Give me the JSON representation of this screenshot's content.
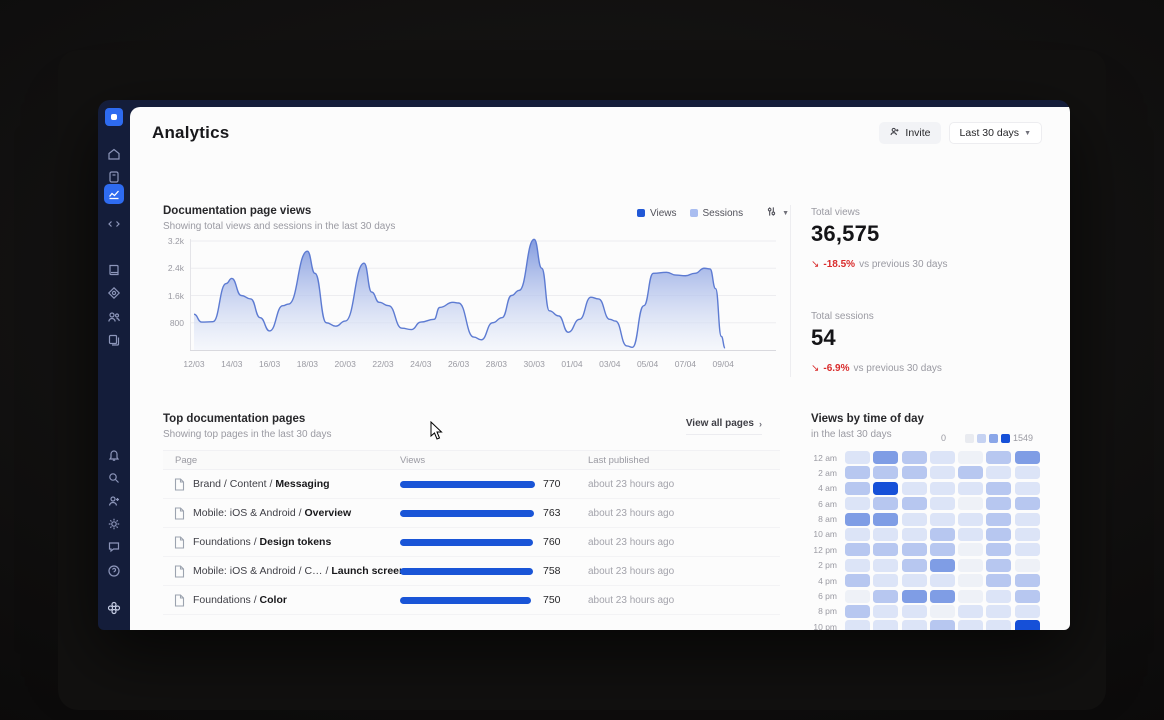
{
  "header": {
    "title": "Analytics",
    "invite_label": "Invite",
    "range_label": "Last 30 days"
  },
  "sidebar": {
    "icons_top": [
      "logo",
      "home",
      "journal",
      "analytics",
      "code"
    ],
    "icons_middle": [
      "library",
      "tokens",
      "team",
      "pages"
    ],
    "icons_lower": [
      "bell",
      "search",
      "user-plus",
      "gear",
      "chat",
      "help"
    ],
    "icon_bottom": "workspace-clover",
    "active_item": "analytics",
    "active_color": "#2e6bf0",
    "bg_color": "#141d3a"
  },
  "views_chart": {
    "title": "Documentation page views",
    "subtitle": "Showing total views and sessions in the last 30 days",
    "legend": [
      {
        "label": "Views",
        "color": "#2158d6"
      },
      {
        "label": "Sessions",
        "color": "#a9bdf0"
      }
    ],
    "options_icon": "sliders-icon"
  },
  "chart_data": {
    "type": "area",
    "title": "Documentation page views",
    "xlabel": "",
    "ylabel": "",
    "ylim": [
      0,
      3400
    ],
    "grid": true,
    "x_tick_labels": [
      "12/03",
      "14/03",
      "16/03",
      "18/03",
      "20/03",
      "22/03",
      "24/03",
      "26/03",
      "28/03",
      "30/03",
      "01/04",
      "03/04",
      "05/04",
      "07/04",
      "09/04"
    ],
    "y_tick_labels": [
      "3.2k",
      "2.4k",
      "1.6k",
      "800"
    ],
    "y_tick_values": [
      3200,
      2400,
      1600,
      800
    ],
    "series": [
      {
        "name": "Views",
        "color": "#2158d6",
        "points": [
          [
            0,
            1050
          ],
          [
            0.4,
            820
          ],
          [
            1,
            830
          ],
          [
            1.7,
            1950
          ],
          [
            2,
            2100
          ],
          [
            2.5,
            1600
          ],
          [
            3,
            1500
          ],
          [
            3.5,
            950
          ],
          [
            4,
            560
          ],
          [
            4.7,
            1300
          ],
          [
            5,
            1350
          ],
          [
            6,
            2900
          ],
          [
            6.4,
            2250
          ],
          [
            7,
            800
          ],
          [
            7.5,
            700
          ],
          [
            8,
            850
          ],
          [
            9,
            2550
          ],
          [
            9.4,
            1700
          ],
          [
            9.8,
            1400
          ],
          [
            10.3,
            1300
          ],
          [
            11,
            640
          ],
          [
            11.5,
            600
          ],
          [
            12,
            820
          ],
          [
            12.7,
            900
          ],
          [
            13,
            1250
          ],
          [
            13.7,
            1400
          ],
          [
            14,
            1380
          ],
          [
            14.8,
            380
          ],
          [
            15.2,
            300
          ],
          [
            15.8,
            800
          ],
          [
            16.3,
            950
          ],
          [
            16.8,
            1600
          ],
          [
            17.2,
            1750
          ],
          [
            18,
            3250
          ],
          [
            18.4,
            2400
          ],
          [
            18.8,
            1150
          ],
          [
            19.3,
            1000
          ],
          [
            19.8,
            520
          ],
          [
            20.4,
            900
          ],
          [
            21,
            1550
          ],
          [
            21.4,
            1500
          ],
          [
            22,
            900
          ],
          [
            22.3,
            850
          ],
          [
            22.9,
            120
          ],
          [
            23.2,
            80
          ],
          [
            23.8,
            1300
          ],
          [
            24.3,
            2250
          ],
          [
            25,
            2280
          ],
          [
            25.5,
            2200
          ],
          [
            26,
            2180
          ],
          [
            26.5,
            2250
          ],
          [
            27,
            2400
          ],
          [
            27.3,
            2380
          ],
          [
            27.6,
            1800
          ],
          [
            27.9,
            400
          ],
          [
            28.1,
            60
          ]
        ]
      },
      {
        "name": "Sessions",
        "color": "#a9bdf0",
        "total": 54
      }
    ]
  },
  "stats": {
    "views": {
      "label": "Total views",
      "value": "36,575",
      "delta": "-18.5%",
      "suffix": "vs previous 30 days",
      "trend": "down"
    },
    "sessions": {
      "label": "Total sessions",
      "value": "54",
      "delta": "-6.9%",
      "suffix": "vs previous 30 days",
      "trend": "down"
    }
  },
  "table": {
    "title": "Top documentation pages",
    "subtitle": "Showing top pages in the last 30 days",
    "view_all": "View all pages",
    "columns": [
      "Page",
      "Views",
      "Last published"
    ],
    "max_views": 770,
    "bar_color": "#1a55d7",
    "rows": [
      {
        "path": "Brand / Content / ",
        "page": "Messaging",
        "views": 770,
        "last_published": "about 23 hours ago"
      },
      {
        "path": "Mobile: iOS & Android / ",
        "page": "Overview",
        "views": 763,
        "last_published": "about 23 hours ago"
      },
      {
        "path": "Foundations / ",
        "page": "Design tokens",
        "views": 760,
        "last_published": "about 23 hours ago"
      },
      {
        "path": "Mobile: iOS & Android / C… / ",
        "page": "Launch screens",
        "views": 758,
        "last_published": "about 23 hours ago"
      },
      {
        "path": "Foundations / ",
        "page": "Color",
        "views": 750,
        "last_published": "about 23 hours ago"
      }
    ]
  },
  "heatmap": {
    "title": "Views by time of day",
    "subtitle": "in the last 30 days",
    "legend_min": "0",
    "legend_max": "1549",
    "legend_palette": [
      "#e9ebf0",
      "#c5d2f2",
      "#8aa6e8",
      "#1650d8"
    ],
    "cell_palette": [
      "#eef1f7",
      "#dce4f7",
      "#b7c7f0",
      "#7f9de5",
      "#1650d8"
    ],
    "row_labels": [
      "12 am",
      "2 am",
      "4 am",
      "6 am",
      "8 am",
      "10 am",
      "12 pm",
      "2 pm",
      "4 pm",
      "6 pm",
      "8 pm",
      "10 pm"
    ],
    "grid": [
      [
        1,
        3,
        2,
        1,
        0,
        2,
        3
      ],
      [
        2,
        2,
        2,
        1,
        2,
        1,
        1
      ],
      [
        2,
        4,
        1,
        1,
        1,
        2,
        1
      ],
      [
        1,
        2,
        2,
        1,
        0,
        2,
        2
      ],
      [
        3,
        3,
        1,
        1,
        1,
        2,
        1
      ],
      [
        1,
        1,
        1,
        2,
        1,
        2,
        1
      ],
      [
        2,
        2,
        2,
        2,
        0,
        2,
        1
      ],
      [
        1,
        1,
        2,
        3,
        0,
        2,
        0
      ],
      [
        2,
        1,
        1,
        1,
        0,
        2,
        2
      ],
      [
        0,
        2,
        3,
        3,
        0,
        1,
        2
      ],
      [
        2,
        1,
        1,
        0,
        1,
        1,
        1
      ],
      [
        1,
        1,
        1,
        2,
        1,
        1,
        4
      ]
    ]
  },
  "colors": {
    "accent_blue": "#1a55d7",
    "session_blue": "#a9bdf0",
    "negative_red": "#d92b2b"
  }
}
